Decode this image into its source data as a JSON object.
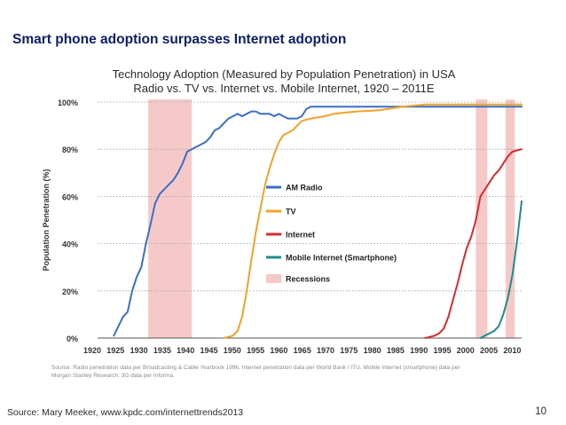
{
  "slide": {
    "title": "Smart phone adoption surpasses Internet adoption",
    "footer_source": "Source: Mary Meeker, www.kpdc.com/internettrends2013",
    "page_number": "10"
  },
  "chart_data": {
    "type": "line",
    "title_line1": "Technology Adoption (Measured by Population Penetration) in USA",
    "title_line2": "Radio vs. TV vs. Internet vs. Mobile Internet, 1920 – 2011E",
    "ylabel": "Population Penetration (%)",
    "xlabel": "",
    "xlim": [
      1920,
      2011
    ],
    "ylim": [
      0,
      100
    ],
    "x_ticks": [
      "1920",
      "1925",
      "1930",
      "1935",
      "1940",
      "1945",
      "1950",
      "1955",
      "1960",
      "1965",
      "1970",
      "1975",
      "1980",
      "1985",
      "1990",
      "1995",
      "2000",
      "2005",
      "2010"
    ],
    "y_ticks": [
      "0%",
      "20%",
      "40%",
      "60%",
      "80%",
      "100%"
    ],
    "grid": true,
    "source_note_line1": "Source: Radio penetration data per Broadcasting & Cable Yearbook 1996, Internet penetration data per World Bank / ITU, Mobile Internet (smartphone) data per",
    "source_note_line2": "Morgan Stanley Research; 3G data per Informa.",
    "recessions": [
      [
        1929.5,
        1939
      ],
      [
        2001,
        2003.5
      ],
      [
        2007.5,
        2009.5
      ]
    ],
    "recession_color": "#f6c9c9",
    "legend_recession_label": "Recessions",
    "series": [
      {
        "name": "AM Radio",
        "color": "#3a6fc4",
        "points": [
          [
            1922,
            1
          ],
          [
            1924,
            9
          ],
          [
            1925,
            11
          ],
          [
            1926,
            20
          ],
          [
            1927,
            26
          ],
          [
            1928,
            30
          ],
          [
            1929,
            40
          ],
          [
            1930,
            48
          ],
          [
            1931,
            57
          ],
          [
            1932,
            61
          ],
          [
            1933,
            63
          ],
          [
            1934,
            65
          ],
          [
            1935,
            67
          ],
          [
            1936,
            70
          ],
          [
            1937,
            74
          ],
          [
            1938,
            79
          ],
          [
            1939,
            80
          ],
          [
            1940,
            81
          ],
          [
            1941,
            82
          ],
          [
            1942,
            83
          ],
          [
            1943,
            85
          ],
          [
            1944,
            88
          ],
          [
            1945,
            89
          ],
          [
            1946,
            91
          ],
          [
            1947,
            93
          ],
          [
            1948,
            94
          ],
          [
            1949,
            95
          ],
          [
            1950,
            94
          ],
          [
            1951,
            95
          ],
          [
            1952,
            96
          ],
          [
            1953,
            96
          ],
          [
            1954,
            95
          ],
          [
            1955,
            95
          ],
          [
            1956,
            95
          ],
          [
            1957,
            94
          ],
          [
            1958,
            95
          ],
          [
            1959,
            94
          ],
          [
            1960,
            93
          ],
          [
            1961,
            93
          ],
          [
            1962,
            93
          ],
          [
            1963,
            94
          ],
          [
            1964,
            97
          ],
          [
            1965,
            98
          ],
          [
            1970,
            98
          ],
          [
            1975,
            98
          ],
          [
            1980,
            98
          ],
          [
            1985,
            98
          ],
          [
            1990,
            98
          ],
          [
            1995,
            98
          ],
          [
            2000,
            98
          ],
          [
            2005,
            98
          ],
          [
            2011,
            98
          ]
        ]
      },
      {
        "name": "TV",
        "color": "#f0a22a",
        "points": [
          [
            1946,
            0
          ],
          [
            1947,
            0.5
          ],
          [
            1948,
            1
          ],
          [
            1949,
            3
          ],
          [
            1950,
            9
          ],
          [
            1951,
            20
          ],
          [
            1952,
            33
          ],
          [
            1953,
            45
          ],
          [
            1954,
            55
          ],
          [
            1955,
            65
          ],
          [
            1956,
            72
          ],
          [
            1957,
            78
          ],
          [
            1958,
            83
          ],
          [
            1959,
            86
          ],
          [
            1960,
            87
          ],
          [
            1961,
            88
          ],
          [
            1962,
            90
          ],
          [
            1963,
            92
          ],
          [
            1965,
            93
          ],
          [
            1968,
            94
          ],
          [
            1970,
            95
          ],
          [
            1975,
            96
          ],
          [
            1980,
            96.5
          ],
          [
            1985,
            98
          ],
          [
            1990,
            99
          ],
          [
            1995,
            99
          ],
          [
            2000,
            99
          ],
          [
            2005,
            99
          ],
          [
            2011,
            99
          ]
        ]
      },
      {
        "name": "Internet",
        "color": "#d72b2b",
        "points": [
          [
            1990,
            0
          ],
          [
            1991,
            0.5
          ],
          [
            1992,
            1
          ],
          [
            1993,
            2
          ],
          [
            1994,
            4
          ],
          [
            1995,
            9
          ],
          [
            1996,
            16
          ],
          [
            1997,
            23
          ],
          [
            1998,
            31
          ],
          [
            1999,
            38
          ],
          [
            2000,
            43
          ],
          [
            2001,
            50
          ],
          [
            2002,
            60
          ],
          [
            2003,
            63
          ],
          [
            2004,
            66
          ],
          [
            2005,
            69
          ],
          [
            2006,
            71
          ],
          [
            2007,
            74
          ],
          [
            2008,
            77
          ],
          [
            2009,
            79
          ],
          [
            2010,
            79.5
          ],
          [
            2011,
            80
          ]
        ]
      },
      {
        "name": "Mobile Internet (Smartphone)",
        "color": "#1f8c8c",
        "points": [
          [
            2002,
            0
          ],
          [
            2003,
            1
          ],
          [
            2004,
            2
          ],
          [
            2005,
            3
          ],
          [
            2006,
            5
          ],
          [
            2007,
            10
          ],
          [
            2008,
            17
          ],
          [
            2009,
            27
          ],
          [
            2010,
            41
          ],
          [
            2011,
            58
          ]
        ]
      }
    ]
  }
}
